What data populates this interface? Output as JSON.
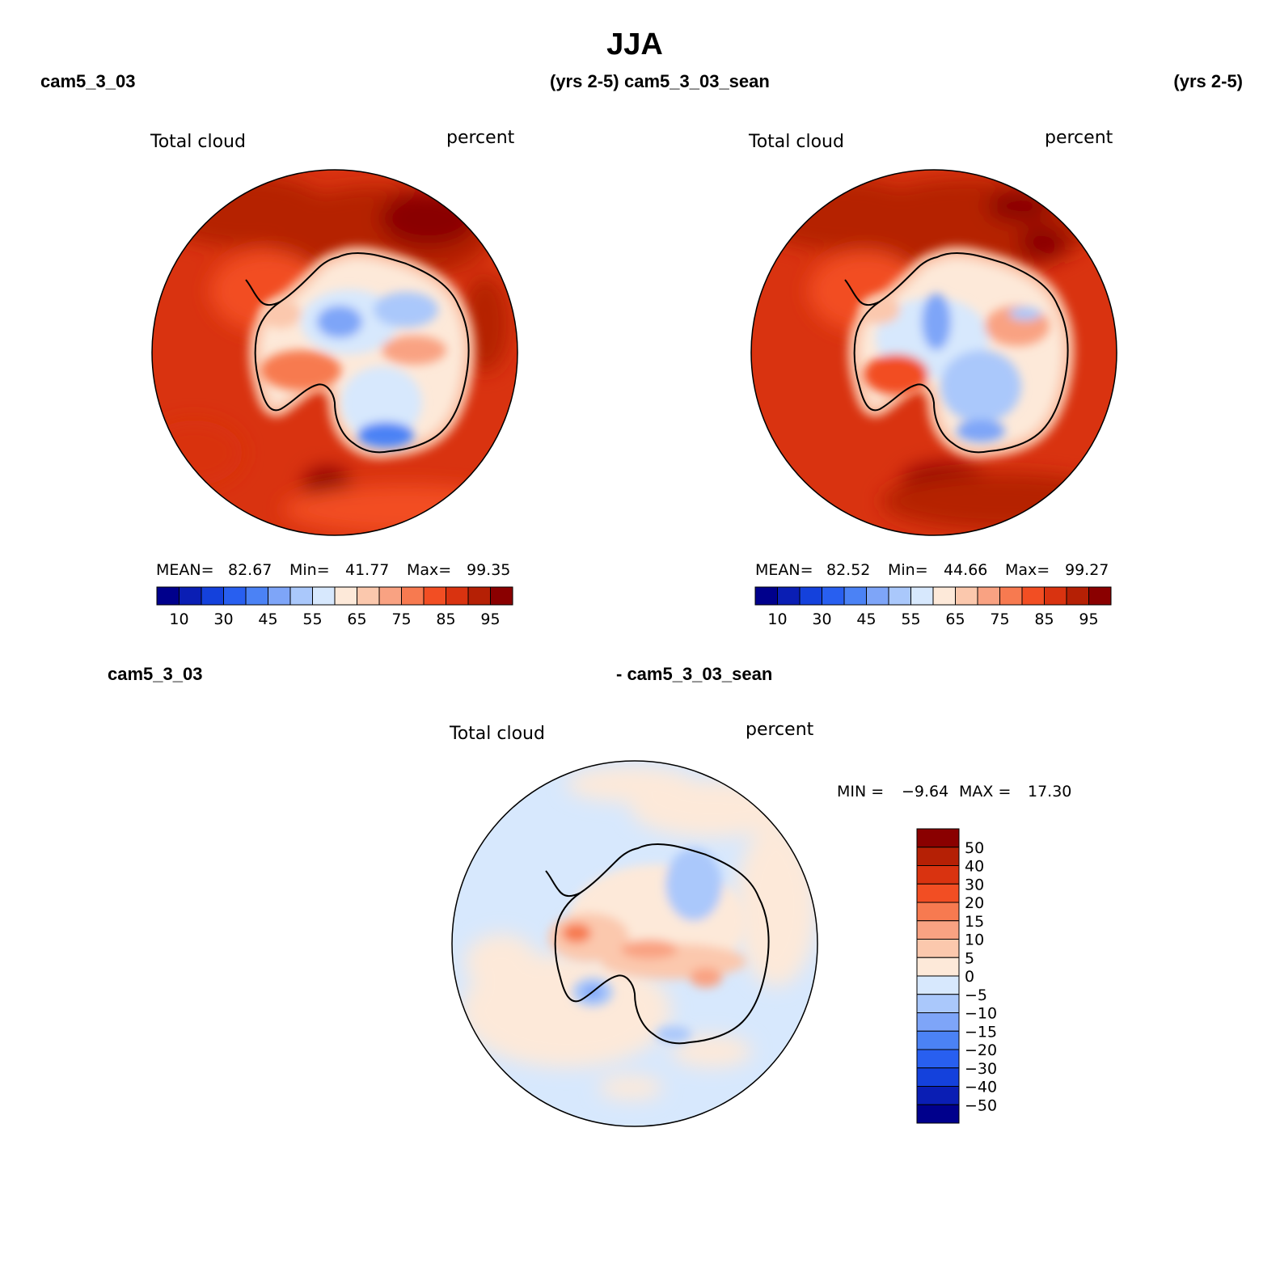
{
  "figure": {
    "title": "JJA",
    "panels": [
      {
        "case": "cam5_3_03",
        "years": "(yrs 2-5)",
        "variable": "Total cloud",
        "units": "percent",
        "stats": {
          "mean_label": "MEAN=",
          "mean": "82.67",
          "min_label": "Min=",
          "min": "41.77",
          "max_label": "Max=",
          "max": "99.35"
        }
      },
      {
        "case": "cam5_3_03_sean",
        "years": "(yrs 2-5)",
        "variable": "Total cloud",
        "units": "percent",
        "stats": {
          "mean_label": "MEAN=",
          "mean": "82.52",
          "min_label": "Min=",
          "min": "44.66",
          "max_label": "Max=",
          "max": "99.27"
        }
      }
    ],
    "diff": {
      "left_label": "cam5_3_03",
      "right_label": "- cam5_3_03_sean",
      "variable": "Total cloud",
      "units": "percent",
      "min_label": "MIN =",
      "min": "−9.64",
      "max_label": "MAX =",
      "max": "17.30"
    },
    "abs_colorbar": {
      "colors": [
        "#00008c",
        "#0a1eb4",
        "#1441dc",
        "#285ff0",
        "#4b82f5",
        "#7ea5f8",
        "#aac8fb",
        "#d7e8fd",
        "#fde9d9",
        "#fbc8ad",
        "#f9a282",
        "#f77a50",
        "#f24e23",
        "#d93310",
        "#b52005",
        "#8a0000"
      ],
      "tick_labels": [
        "10",
        "30",
        "45",
        "55",
        "65",
        "75",
        "85",
        "95"
      ]
    },
    "diff_colorbar": {
      "colors_top_to_bottom": [
        "#8a0000",
        "#b52005",
        "#d93310",
        "#f24e23",
        "#f77a50",
        "#f9a282",
        "#fbc8ad",
        "#fde9d9",
        "#d7e8fd",
        "#aac8fb",
        "#7ea5f8",
        "#4b82f5",
        "#285ff0",
        "#1441dc",
        "#0a1eb4",
        "#00008c"
      ],
      "tick_labels": [
        "50",
        "40",
        "30",
        "20",
        "15",
        "10",
        "5",
        "0",
        "−5",
        "−10",
        "−15",
        "−20",
        "−30",
        "−40",
        "−50"
      ]
    }
  }
}
